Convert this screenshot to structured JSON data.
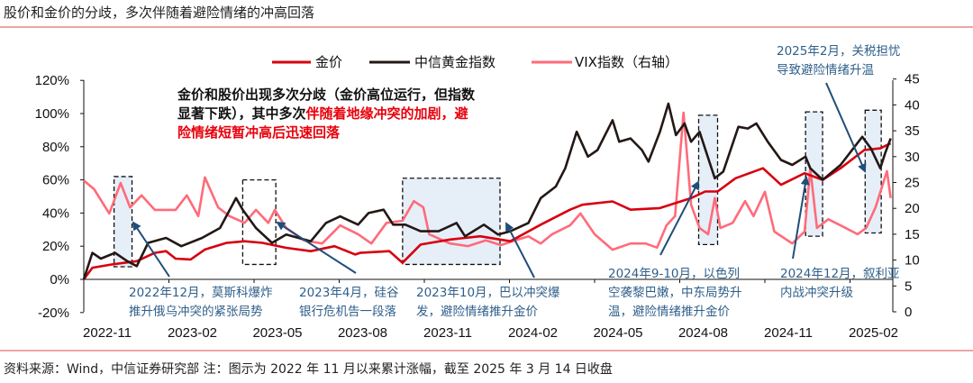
{
  "title": "股价和金价的分歧，多次伴随着避险情绪的冲高回落",
  "footer": "资料来源：Wind，中信证券研究部   注：图示为 2022 年 11 月以来累计涨幅，截至 2025 年 3 月 14 日收盘",
  "main_note": {
    "line1": "金价和股价出现多次分歧（金价高位运行，但指数",
    "line2_black": "显著下跌），其中多次",
    "line2_red": "伴随着地缘冲突的加剧，避",
    "line3_red": "险情绪短暂冲高后迅速回落"
  },
  "annotations": [
    {
      "lines": [
        "2022年12月，莫斯科爆炸",
        "推升俄乌冲突的紧张局势"
      ]
    },
    {
      "lines": [
        "2023年4月，硅谷",
        "银行危机告一段落"
      ]
    },
    {
      "lines": [
        "2023年10月，巴以冲突爆",
        "发，避险情绪推升金价"
      ]
    },
    {
      "lines": [
        "2024年9-10月，以色列",
        "空袭黎巴嫩，中东局势升",
        "温，避险情绪推升金价"
      ]
    },
    {
      "lines": [
        "2024年12月，叙利亚",
        "内战冲突升级"
      ]
    },
    {
      "lines": [
        "2025年2月，关税担忧",
        "导致避险情绪升温"
      ]
    }
  ],
  "chart_data": {
    "type": "line",
    "title": "",
    "legend_position": "top",
    "grid": false,
    "x_ticks": [
      "2022-11",
      "2023-02",
      "2023-05",
      "2023-08",
      "2023-11",
      "2024-02",
      "2024-05",
      "2024-08",
      "2024-11",
      "2025-02"
    ],
    "y_left": {
      "ticks": [
        "-20%",
        "0%",
        "20%",
        "40%",
        "60%",
        "80%",
        "100%",
        "120%"
      ],
      "range": [
        -20,
        120
      ]
    },
    "y_right": {
      "ticks": [
        "0",
        "5",
        "10",
        "15",
        "20",
        "25",
        "30",
        "35",
        "40",
        "45"
      ],
      "range": [
        0,
        45
      ]
    },
    "series": [
      {
        "name": "金价",
        "axis": "left",
        "color": "#d7000f",
        "points": [
          [
            "2022-11-01",
            0
          ],
          [
            "2022-11-10",
            7
          ],
          [
            "2022-12-01",
            9
          ],
          [
            "2022-12-27",
            11
          ],
          [
            "2023-01-16",
            16
          ],
          [
            "2023-01-28",
            17
          ],
          [
            "2023-02-08",
            12.5
          ],
          [
            "2023-02-24",
            12
          ],
          [
            "2023-03-09",
            18
          ],
          [
            "2023-04-02",
            22
          ],
          [
            "2023-04-21",
            23
          ],
          [
            "2023-05-10",
            22
          ],
          [
            "2023-06-05",
            19
          ],
          [
            "2023-07-01",
            17
          ],
          [
            "2023-07-26",
            20
          ],
          [
            "2023-08-18",
            15
          ],
          [
            "2023-08-23",
            16
          ],
          [
            "2023-09-24",
            17
          ],
          [
            "2023-10-08",
            10
          ],
          [
            "2023-10-27",
            21
          ],
          [
            "2023-11-28",
            24
          ],
          [
            "2023-12-30",
            26
          ],
          [
            "2024-02-02",
            23
          ],
          [
            "2024-03-04",
            33
          ],
          [
            "2024-04-05",
            42
          ],
          [
            "2024-04-18",
            45
          ],
          [
            "2024-05-20",
            47
          ],
          [
            "2024-06-09",
            42
          ],
          [
            "2024-07-10",
            43
          ],
          [
            "2024-08-13",
            49
          ],
          [
            "2024-08-28",
            53
          ],
          [
            "2024-09-11",
            53
          ],
          [
            "2024-09-30",
            61
          ],
          [
            "2024-10-29",
            67
          ],
          [
            "2024-11-18",
            57
          ],
          [
            "2024-12-13",
            64
          ],
          [
            "2025-01-02",
            60
          ],
          [
            "2025-01-21",
            67
          ],
          [
            "2025-02-16",
            78
          ],
          [
            "2025-03-03",
            79
          ],
          [
            "2025-03-14",
            82
          ]
        ]
      },
      {
        "name": "中信黄金指数",
        "axis": "left",
        "color": "#231815",
        "points": [
          [
            "2022-11-01",
            0
          ],
          [
            "2022-11-10",
            16
          ],
          [
            "2022-11-19",
            12.5
          ],
          [
            "2022-12-04",
            16
          ],
          [
            "2022-12-17",
            11
          ],
          [
            "2022-12-27",
            8
          ],
          [
            "2023-01-09",
            22
          ],
          [
            "2023-01-28",
            25
          ],
          [
            "2023-02-14",
            20
          ],
          [
            "2023-03-06",
            25
          ],
          [
            "2023-03-25",
            31
          ],
          [
            "2023-04-12",
            49
          ],
          [
            "2023-04-19",
            42
          ],
          [
            "2023-05-03",
            31
          ],
          [
            "2023-05-20",
            22
          ],
          [
            "2023-06-05",
            27
          ],
          [
            "2023-07-01",
            23
          ],
          [
            "2023-07-17",
            34
          ],
          [
            "2023-08-02",
            38
          ],
          [
            "2023-08-21",
            33
          ],
          [
            "2023-09-02",
            40
          ],
          [
            "2023-09-18",
            42
          ],
          [
            "2023-09-28",
            33
          ],
          [
            "2023-10-11",
            33
          ],
          [
            "2023-10-27",
            29
          ],
          [
            "2023-11-16",
            29
          ],
          [
            "2023-12-05",
            34
          ],
          [
            "2023-12-14",
            26
          ],
          [
            "2024-01-04",
            33
          ],
          [
            "2024-01-19",
            27
          ],
          [
            "2024-02-02",
            29
          ],
          [
            "2024-02-21",
            34
          ],
          [
            "2024-03-04",
            49
          ],
          [
            "2024-03-20",
            56
          ],
          [
            "2024-03-30",
            67
          ],
          [
            "2024-04-12",
            89
          ],
          [
            "2024-04-24",
            74
          ],
          [
            "2024-05-04",
            78
          ],
          [
            "2024-05-20",
            96
          ],
          [
            "2024-05-27",
            83
          ],
          [
            "2024-06-09",
            85
          ],
          [
            "2024-06-21",
            78
          ],
          [
            "2024-06-28",
            71
          ],
          [
            "2024-07-10",
            89
          ],
          [
            "2024-07-19",
            106
          ],
          [
            "2024-07-27",
            87
          ],
          [
            "2024-08-06",
            94
          ],
          [
            "2024-08-13",
            83
          ],
          [
            "2024-08-22",
            89
          ],
          [
            "2024-09-08",
            61
          ],
          [
            "2024-09-17",
            65
          ],
          [
            "2024-10-03",
            92
          ],
          [
            "2024-10-13",
            91
          ],
          [
            "2024-10-22",
            94
          ],
          [
            "2024-11-04",
            83
          ],
          [
            "2024-11-18",
            72
          ],
          [
            "2024-11-30",
            69
          ],
          [
            "2024-12-14",
            74
          ],
          [
            "2024-12-19",
            67
          ],
          [
            "2025-01-02",
            60
          ],
          [
            "2025-01-21",
            69
          ],
          [
            "2025-02-14",
            86
          ],
          [
            "2025-02-23",
            79
          ],
          [
            "2025-03-03",
            67
          ],
          [
            "2025-03-08",
            76
          ],
          [
            "2025-03-14",
            85
          ]
        ]
      },
      {
        "name": "VIX指数（右轴）",
        "axis": "right",
        "color": "#ff6b7a",
        "points": [
          [
            "2022-11-01",
            25.4
          ],
          [
            "2022-11-12",
            23.7
          ],
          [
            "2022-11-28",
            19
          ],
          [
            "2022-12-10",
            24.9
          ],
          [
            "2022-12-20",
            20.2
          ],
          [
            "2023-01-02",
            22.5
          ],
          [
            "2023-01-16",
            19.7
          ],
          [
            "2023-02-08",
            19.7
          ],
          [
            "2023-02-20",
            22.5
          ],
          [
            "2023-03-02",
            18.5
          ],
          [
            "2023-03-09",
            26
          ],
          [
            "2023-03-23",
            20.2
          ],
          [
            "2023-04-05",
            18.5
          ],
          [
            "2023-04-21",
            17.2
          ],
          [
            "2023-05-03",
            19.7
          ],
          [
            "2023-05-16",
            17.2
          ],
          [
            "2023-05-23",
            19.7
          ],
          [
            "2023-06-05",
            16.2
          ],
          [
            "2023-06-24",
            13.8
          ],
          [
            "2023-07-13",
            13.2
          ],
          [
            "2023-08-02",
            16.7
          ],
          [
            "2023-08-21",
            15
          ],
          [
            "2023-09-05",
            13.2
          ],
          [
            "2023-09-21",
            17.2
          ],
          [
            "2023-10-08",
            17.6
          ],
          [
            "2023-10-20",
            21.4
          ],
          [
            "2023-10-30",
            20.2
          ],
          [
            "2023-11-06",
            15
          ],
          [
            "2023-11-28",
            13.2
          ],
          [
            "2023-12-17",
            12.7
          ],
          [
            "2024-01-06",
            13.8
          ],
          [
            "2024-01-22",
            12.9
          ],
          [
            "2024-02-07",
            13.8
          ],
          [
            "2024-02-21",
            14.6
          ],
          [
            "2024-03-04",
            13.2
          ],
          [
            "2024-03-16",
            15
          ],
          [
            "2024-04-05",
            16.7
          ],
          [
            "2024-04-16",
            19
          ],
          [
            "2024-05-01",
            15
          ],
          [
            "2024-05-20",
            12
          ],
          [
            "2024-06-09",
            13.2
          ],
          [
            "2024-06-25",
            13.2
          ],
          [
            "2024-07-07",
            12.4
          ],
          [
            "2024-07-17",
            16.7
          ],
          [
            "2024-07-26",
            18.5
          ],
          [
            "2024-08-05",
            38.5
          ],
          [
            "2024-08-13",
            20.7
          ],
          [
            "2024-08-22",
            16.2
          ],
          [
            "2024-09-01",
            15
          ],
          [
            "2024-09-08",
            22
          ],
          [
            "2024-09-14",
            16.2
          ],
          [
            "2024-09-27",
            17.2
          ],
          [
            "2024-10-10",
            21.4
          ],
          [
            "2024-10-19",
            18.5
          ],
          [
            "2024-11-01",
            23.2
          ],
          [
            "2024-11-11",
            15.5
          ],
          [
            "2024-11-30",
            13.2
          ],
          [
            "2024-12-13",
            15.5
          ],
          [
            "2024-12-19",
            27.7
          ],
          [
            "2024-12-26",
            16.2
          ],
          [
            "2025-01-08",
            17.9
          ],
          [
            "2025-01-21",
            16.7
          ],
          [
            "2025-02-09",
            15
          ],
          [
            "2025-02-18",
            16.2
          ],
          [
            "2025-02-28",
            20.2
          ],
          [
            "2025-03-10",
            27.2
          ],
          [
            "2025-03-14",
            22
          ]
        ]
      }
    ],
    "highlight_periods": [
      {
        "from": "2022-12-03",
        "to": "2022-12-22",
        "y_range": [
          7.6,
          62
        ],
        "filled": true
      },
      {
        "from": "2023-04-19",
        "to": "2023-05-24",
        "y_range": [
          9,
          60
        ],
        "filled": false
      },
      {
        "from": "2023-10-08",
        "to": "2024-01-21",
        "y_range": [
          9,
          61
        ],
        "filled": true
      },
      {
        "from": "2024-08-21",
        "to": "2024-09-11",
        "y_range": [
          21,
          99
        ],
        "filled": true
      },
      {
        "from": "2024-12-14",
        "to": "2025-01-02",
        "y_range": [
          26,
          101
        ],
        "filled": true
      },
      {
        "from": "2025-02-17",
        "to": "2025-03-04",
        "y_range": [
          28,
          102
        ],
        "filled": true
      }
    ]
  },
  "colors": {
    "accent_rule": "#e07070",
    "highlight_fill": "#e6eff8",
    "arrow": "#1f4e79",
    "annotation_text": "#2f5f8a",
    "emphasis_red": "#e8000b"
  }
}
